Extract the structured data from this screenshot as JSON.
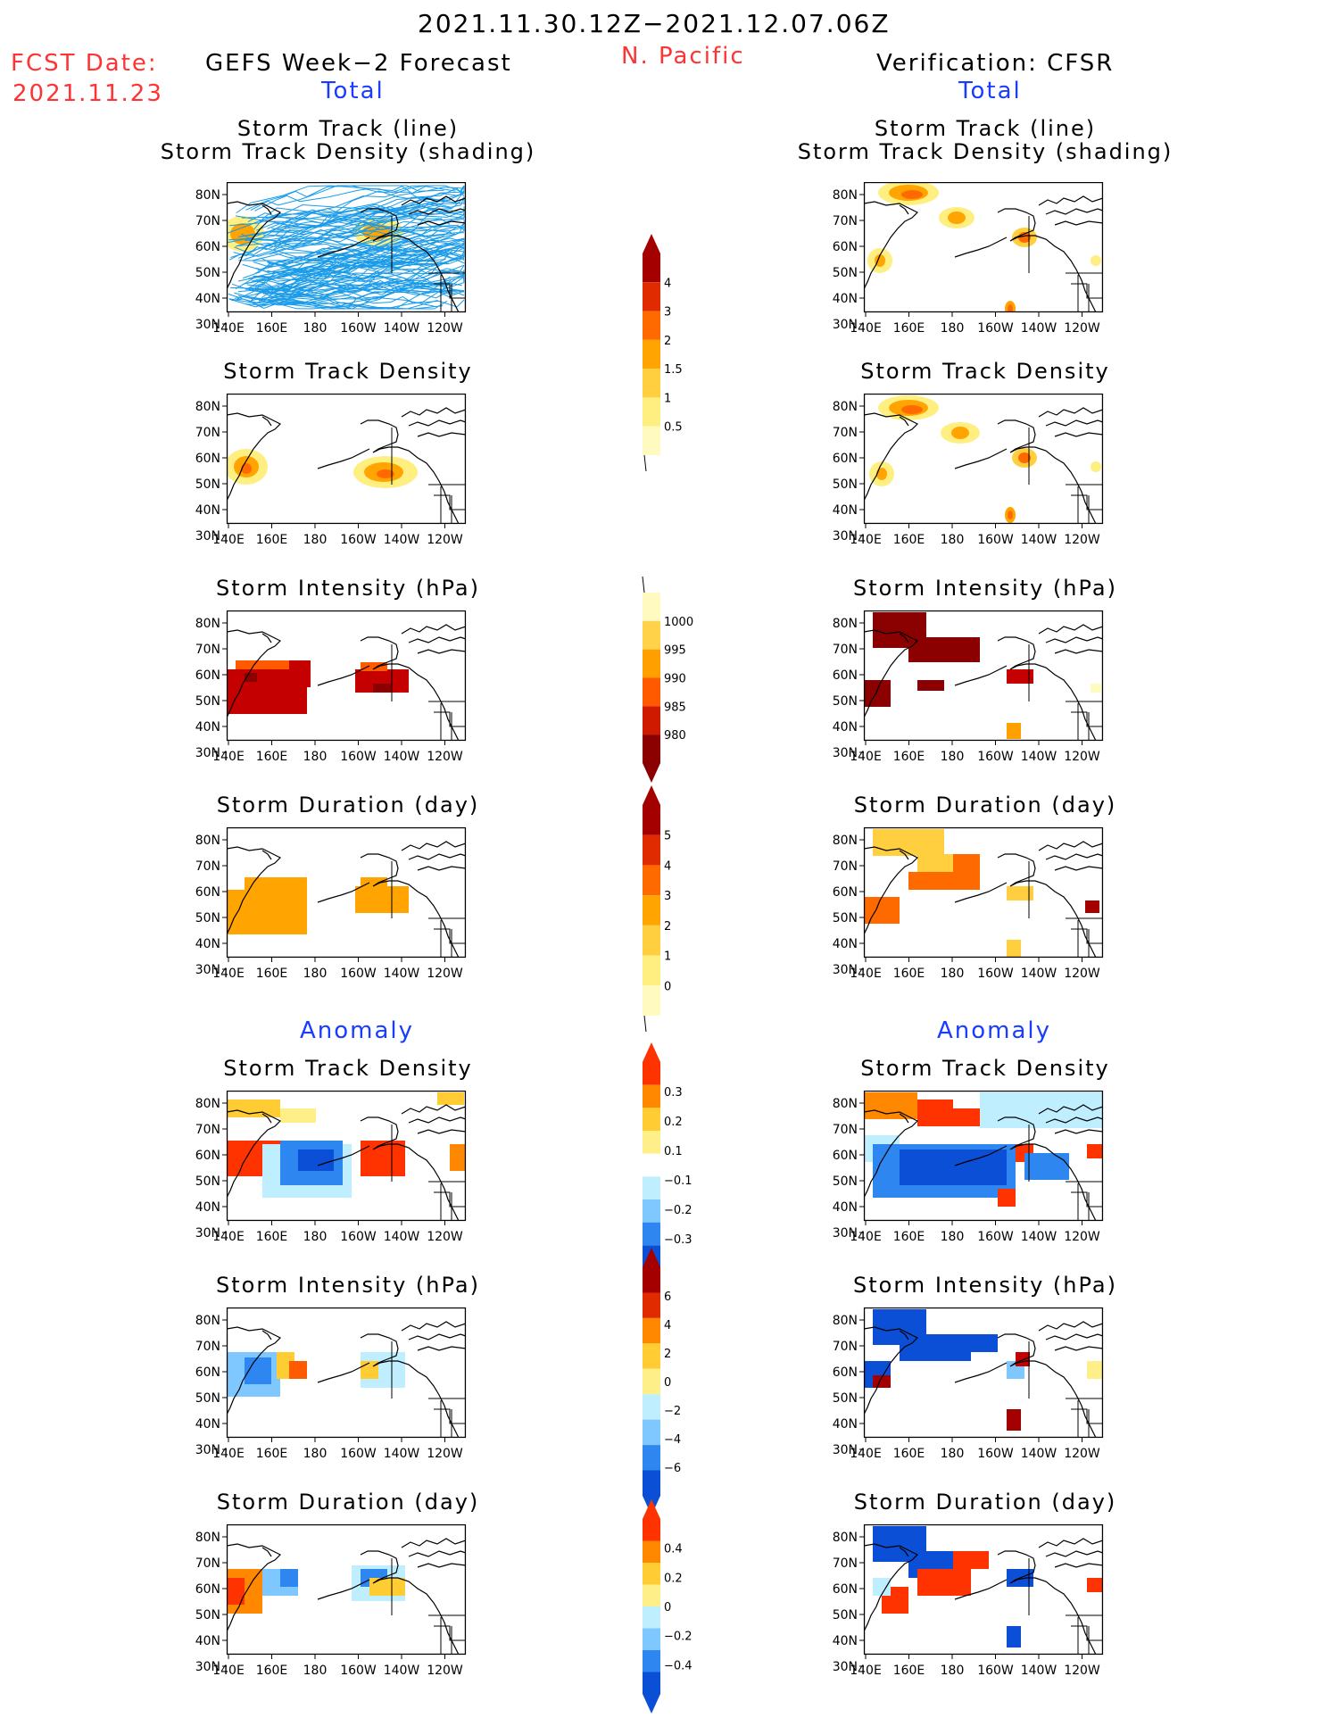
{
  "header": {
    "period": "2021.11.30.12Z−2021.12.07.06Z",
    "region": "N. Pacific",
    "fcst_label": "FCST Date:",
    "fcst_date": "2021.11.23",
    "left_title": "GEFS Week−2 Forecast",
    "right_title": "Verification: CFSR",
    "total_left": "Total",
    "total_right": "Total",
    "anomaly_left": "Anomaly",
    "anomaly_right": "Anomaly"
  },
  "panel_titles": {
    "track_line": "Storm Track (line)",
    "track_shading": "Storm Track Density (shading)",
    "density": "Storm Track Density",
    "intensity": "Storm Intensity (hPa)",
    "duration": "Storm Duration (day)"
  },
  "axes": {
    "lat_labels": [
      "80N",
      "70N",
      "60N",
      "50N",
      "40N",
      "30N"
    ],
    "lon_labels": [
      "140E",
      "160E",
      "180",
      "160W",
      "140W",
      "120W"
    ]
  },
  "colorbars": {
    "density_total": {
      "labels": [
        "4",
        "3",
        "2",
        "1.5",
        "1",
        "0.5"
      ],
      "colors": [
        "#a50000",
        "#e02a00",
        "#ff6a00",
        "#ffa400",
        "#ffcf40",
        "#ffee80",
        "#fffbc0"
      ]
    },
    "intensity_total": {
      "labels": [
        "1000",
        "995",
        "990",
        "985",
        "980"
      ],
      "colors": [
        "#fffbc0",
        "#ffd24a",
        "#ffa000",
        "#ff5a00",
        "#d01a00",
        "#8b0000"
      ]
    },
    "duration_total": {
      "labels": [
        "5",
        "4",
        "3",
        "2",
        "1",
        "0"
      ],
      "colors": [
        "#a50000",
        "#e02a00",
        "#ff6a00",
        "#ffa400",
        "#ffcf40",
        "#ffee80",
        "#fffbc0"
      ]
    },
    "density_anom": {
      "labels": [
        "0.3",
        "0.2",
        "0.1",
        "−0.1",
        "−0.2",
        "−0.3"
      ],
      "colors": [
        "#ff3300",
        "#ff8800",
        "#ffcc33",
        "#ffef88",
        "#ffffff",
        "#bfeeff",
        "#7fc8ff",
        "#2e86f0",
        "#0a4fd6"
      ]
    },
    "intensity_anom": {
      "labels": [
        "6",
        "4",
        "2",
        "0",
        "−2",
        "−4",
        "−6"
      ],
      "colors": [
        "#a50000",
        "#e02a00",
        "#ff8800",
        "#ffcc33",
        "#ffef88",
        "#bfeeff",
        "#7fc8ff",
        "#2e86f0",
        "#0a4fd6"
      ]
    },
    "duration_anom": {
      "labels": [
        "0.4",
        "0.2",
        "0",
        "−0.2",
        "−0.4"
      ],
      "colors": [
        "#ff3300",
        "#ff8800",
        "#ffcc33",
        "#ffef88",
        "#bfeeff",
        "#7fc8ff",
        "#2e86f0",
        "#0a4fd6"
      ]
    }
  },
  "colors": {
    "track_line": "#1a9be8",
    "coast": "#000000",
    "header_red": "#ff3333",
    "header_blue": "#1a3cff"
  }
}
